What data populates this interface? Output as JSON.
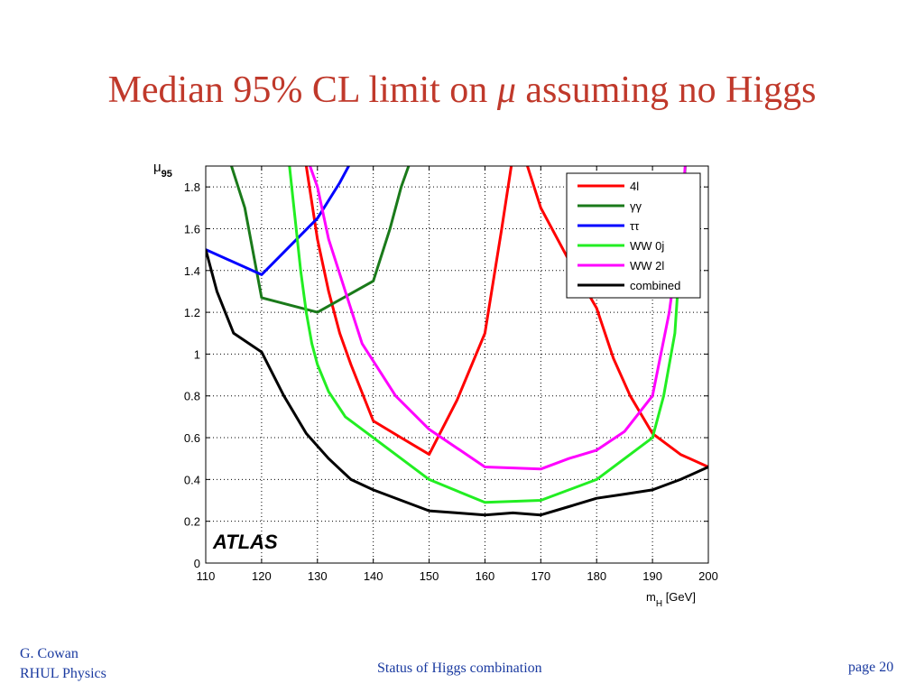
{
  "slide": {
    "title_prefix": "Median 95% CL limit on ",
    "title_mu": "μ",
    "title_suffix": " assuming no Higgs"
  },
  "footer": {
    "author": "G. Cowan",
    "affiliation": "RHUL Physics",
    "center": "Status of Higgs combination",
    "page": "page 20"
  },
  "chart_data": {
    "type": "line",
    "ylabel_main": "μ",
    "ylabel_sub": "95",
    "xlabel_main": "m",
    "xlabel_sub": "H",
    "xlabel_unit": " [GeV]",
    "xlim": [
      110,
      200
    ],
    "ylim": [
      0,
      1.9
    ],
    "xticks": [
      110,
      120,
      130,
      140,
      150,
      160,
      170,
      180,
      190,
      200
    ],
    "yticks": [
      0,
      0.2,
      0.4,
      0.6,
      0.8,
      1,
      1.2,
      1.4,
      1.6,
      1.8
    ],
    "ytick_labels": [
      "0",
      "0.2",
      "0.4",
      "0.6",
      "0.8",
      "1",
      "1.2",
      "1.4",
      "1.6",
      "1.8"
    ],
    "grid": true,
    "legend_position": "top-right",
    "annotation": "ATLAS",
    "series": [
      {
        "name": "4l",
        "color": "#ff0000",
        "x": [
          128,
          130,
          132,
          134,
          136,
          140,
          145,
          150,
          155,
          160,
          163,
          165,
          167,
          170,
          175,
          180,
          183,
          186,
          190,
          195,
          200
        ],
        "y": [
          1.9,
          1.55,
          1.3,
          1.1,
          0.95,
          0.68,
          0.6,
          0.52,
          0.78,
          1.1,
          1.6,
          1.95,
          1.95,
          1.7,
          1.45,
          1.22,
          0.98,
          0.8,
          0.62,
          0.52,
          0.46
        ]
      },
      {
        "name": "γγ",
        "color": "#1a7a1a",
        "x": [
          114,
          117,
          120,
          130,
          140,
          143,
          145,
          147
        ],
        "y": [
          1.95,
          1.7,
          1.27,
          1.2,
          1.35,
          1.6,
          1.8,
          1.95
        ]
      },
      {
        "name": "ττ",
        "color": "#0000ff",
        "x": [
          110,
          120,
          130,
          134,
          136
        ],
        "y": [
          1.5,
          1.38,
          1.65,
          1.82,
          1.92
        ]
      },
      {
        "name": "WW 0j",
        "color": "#22ee22",
        "x": [
          125,
          126,
          127,
          128,
          129,
          130,
          132,
          135,
          140,
          145,
          150,
          160,
          170,
          180,
          190,
          192,
          194,
          195,
          196
        ],
        "y": [
          1.9,
          1.65,
          1.4,
          1.2,
          1.05,
          0.95,
          0.82,
          0.7,
          0.6,
          0.5,
          0.4,
          0.29,
          0.3,
          0.4,
          0.6,
          0.8,
          1.1,
          1.5,
          1.95
        ]
      },
      {
        "name": "WW 2l",
        "color": "#ff00ff",
        "x": [
          128,
          130,
          132,
          135,
          138,
          144,
          150,
          155,
          160,
          165,
          170,
          175,
          180,
          185,
          190,
          193,
          195,
          196
        ],
        "y": [
          1.95,
          1.8,
          1.55,
          1.3,
          1.05,
          0.8,
          0.64,
          0.55,
          0.46,
          0.455,
          0.45,
          0.5,
          0.54,
          0.63,
          0.8,
          1.2,
          1.6,
          1.95
        ]
      },
      {
        "name": "combined",
        "color": "#000000",
        "x": [
          110,
          112,
          115,
          120,
          124,
          128,
          132,
          136,
          140,
          145,
          150,
          155,
          160,
          165,
          170,
          175,
          180,
          185,
          190,
          195,
          200
        ],
        "y": [
          1.5,
          1.3,
          1.1,
          1.01,
          0.8,
          0.62,
          0.5,
          0.4,
          0.35,
          0.3,
          0.25,
          0.24,
          0.23,
          0.24,
          0.23,
          0.27,
          0.31,
          0.33,
          0.35,
          0.4,
          0.46
        ]
      }
    ]
  }
}
